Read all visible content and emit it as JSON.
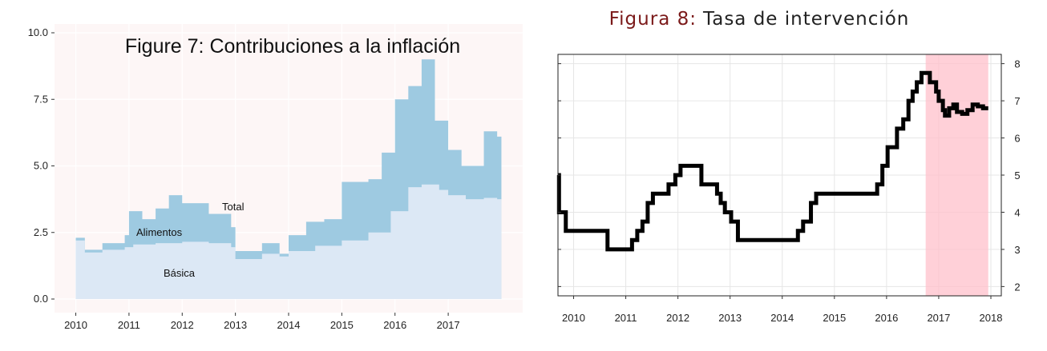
{
  "chart_data": [
    {
      "type": "area",
      "title": "Figure 7: Contribuciones a la inflación",
      "x_ticks": [
        "2010",
        "2011",
        "2012",
        "2013",
        "2014",
        "2015",
        "2016",
        "2017"
      ],
      "y_ticks": [
        "0.0",
        "2.5",
        "5.0",
        "7.5",
        "10.0"
      ],
      "ylim": [
        0,
        10
      ],
      "xlim": [
        2009.6,
        2018.4
      ],
      "annotations": [
        "Total",
        "Alimentos",
        "Básica"
      ],
      "colors": {
        "basica": "#dce8f5",
        "alimentos": "#9ecae1",
        "panel": "#fdf6f6"
      },
      "series": [
        {
          "name": "Básica",
          "x": [
            2010.0,
            2010.17,
            2010.5,
            2010.92,
            2011.08,
            2011.5,
            2012.0,
            2012.5,
            2012.92,
            2013.0,
            2013.5,
            2013.83,
            2014.0,
            2014.5,
            2015.0,
            2015.5,
            2015.92,
            2016.25,
            2016.5,
            2016.83,
            2017.0,
            2017.33,
            2017.67,
            2017.92
          ],
          "values": [
            2.2,
            1.75,
            1.85,
            1.95,
            2.05,
            2.1,
            2.15,
            2.1,
            1.95,
            1.5,
            1.7,
            1.6,
            1.8,
            2.0,
            2.2,
            2.5,
            3.3,
            4.2,
            4.3,
            4.1,
            3.9,
            3.75,
            3.8,
            3.75
          ]
        },
        {
          "name": "Total",
          "x": [
            2010.0,
            2010.17,
            2010.5,
            2010.92,
            2011.0,
            2011.25,
            2011.5,
            2011.75,
            2012.0,
            2012.5,
            2012.92,
            2013.0,
            2013.5,
            2013.83,
            2014.0,
            2014.33,
            2014.67,
            2015.0,
            2015.5,
            2015.75,
            2016.0,
            2016.25,
            2016.5,
            2016.75,
            2017.0,
            2017.25,
            2017.5,
            2017.67,
            2017.92
          ],
          "values": [
            2.3,
            1.85,
            2.1,
            2.4,
            3.3,
            3.0,
            3.4,
            3.9,
            3.6,
            3.2,
            2.7,
            1.8,
            2.1,
            1.7,
            2.4,
            2.9,
            3.0,
            4.4,
            4.5,
            5.5,
            7.5,
            8.0,
            9.0,
            6.7,
            5.6,
            5.0,
            5.0,
            6.3,
            6.1
          ]
        }
      ]
    },
    {
      "type": "line",
      "title_prefix": "Figura 8:",
      "title_text": "Tasa de intervención",
      "x_ticks": [
        "2010",
        "2011",
        "2012",
        "2013",
        "2014",
        "2015",
        "2016",
        "2017",
        "2018"
      ],
      "y_ticks": [
        "2",
        "3",
        "4",
        "5",
        "6",
        "7",
        "8"
      ],
      "ylim": [
        1.75,
        8.25
      ],
      "xlim": [
        2009.7,
        2018.2
      ],
      "shaded_range": [
        2016.75,
        2017.95
      ],
      "colors": {
        "line": "#000000",
        "shade": "#ffc0cb",
        "title_prefix": "#7b1a1a",
        "title_text": "#222222"
      },
      "series": [
        {
          "x": [
            2009.7,
            2009.72,
            2009.85,
            2010.35,
            2010.65,
            2011.05,
            2011.12,
            2011.22,
            2011.32,
            2011.42,
            2011.52,
            2011.65,
            2011.82,
            2011.95,
            2012.05,
            2012.12,
            2012.45,
            2012.55,
            2012.75,
            2012.82,
            2012.9,
            2013.02,
            2013.15,
            2013.58,
            2014.18,
            2014.3,
            2014.4,
            2014.55,
            2014.65,
            2015.75,
            2015.82,
            2015.92,
            2016.02,
            2016.1,
            2016.2,
            2016.32,
            2016.42,
            2016.5,
            2016.58,
            2016.67,
            2016.75,
            2016.83,
            2016.95,
            2017.0,
            2017.08,
            2017.12,
            2017.2,
            2017.28,
            2017.35,
            2017.45,
            2017.55,
            2017.65,
            2017.75,
            2017.85,
            2017.95
          ],
          "values": [
            5.0,
            4.0,
            3.5,
            3.5,
            3.0,
            3.0,
            3.25,
            3.5,
            3.75,
            4.25,
            4.5,
            4.5,
            4.75,
            5.0,
            5.25,
            5.25,
            4.75,
            4.75,
            4.5,
            4.25,
            4.0,
            3.75,
            3.25,
            3.25,
            3.25,
            3.5,
            3.75,
            4.25,
            4.5,
            4.5,
            4.75,
            5.25,
            5.75,
            5.75,
            6.25,
            6.5,
            7.0,
            7.25,
            7.5,
            7.75,
            7.75,
            7.5,
            7.25,
            7.0,
            6.75,
            6.6,
            6.8,
            6.9,
            6.7,
            6.65,
            6.75,
            6.9,
            6.85,
            6.8,
            6.8
          ]
        }
      ]
    }
  ]
}
